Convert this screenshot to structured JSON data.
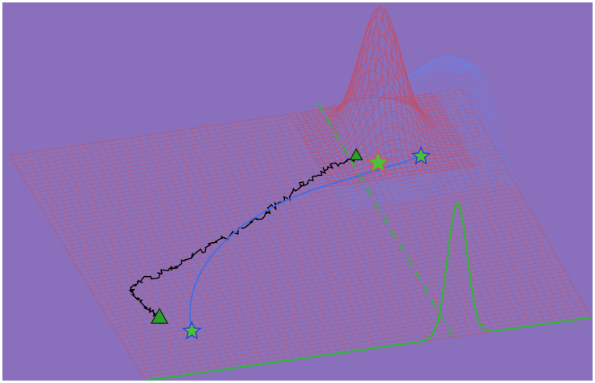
{
  "scene": {
    "background_color": "#8a6fbd",
    "border_color": "#ffffff",
    "grid_color": "#b05a78",
    "red_mesh_color": "#c0506a",
    "blue_mesh_color": "#6f7fe0",
    "random_walk_color": "#000000",
    "smooth_path_color": "#3f6fe8",
    "curve_color": "#33b33a",
    "dashed_line_color": "#33b33a",
    "triangle_fill": "#2e9c2e",
    "star_fill": "#4fbf3a",
    "star_stroke_blue": "#2a3fd8",
    "star_stroke_red": "#d8504c",
    "markers": [
      {
        "kind": "triangle",
        "icon": "triangle-start-icon"
      },
      {
        "kind": "triangle",
        "icon": "triangle-end-icon"
      },
      {
        "kind": "star",
        "icon": "star-start-icon"
      },
      {
        "kind": "star",
        "icon": "star-end-icon"
      },
      {
        "kind": "star",
        "icon": "star-target-icon"
      }
    ]
  }
}
